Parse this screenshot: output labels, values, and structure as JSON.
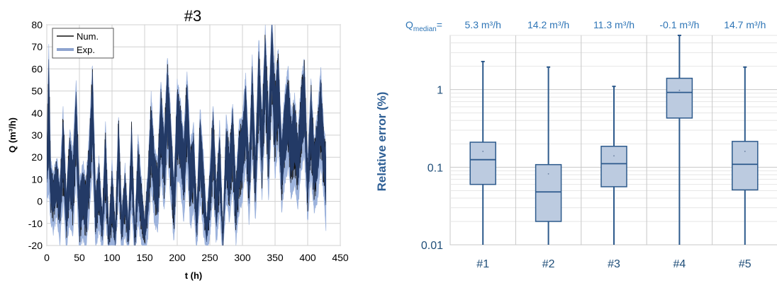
{
  "colors": {
    "num": "#111111",
    "exp_fill": "#9db3dc",
    "exp_core": "#233a66",
    "box_fill": "#bccbe0",
    "box_stroke": "#2d5a8c",
    "text_blue": "#2e75b6",
    "grid": "#d0d0d0"
  },
  "chart_data": [
    {
      "type": "line",
      "title": "#3",
      "xlabel": "t (h)",
      "ylabel": "Q  (m³/h)",
      "xlim": [
        0,
        450
      ],
      "ylim": [
        -20,
        80
      ],
      "xticks": [
        "0",
        "50",
        "100",
        "150",
        "200",
        "250",
        "300",
        "350",
        "400",
        "450"
      ],
      "yticks": [
        "-20",
        "-10",
        "0",
        "10",
        "20",
        "30",
        "40",
        "50",
        "60",
        "70",
        "80"
      ],
      "grid": true,
      "legend_position": "top-left",
      "series": [
        {
          "name": "Num.",
          "x": [
            0,
            3,
            6,
            10,
            15,
            20,
            25,
            30,
            35,
            40,
            45,
            50,
            55,
            60,
            65,
            70,
            75,
            80,
            85,
            90,
            95,
            100,
            105,
            110,
            115,
            120,
            125,
            130,
            135,
            140,
            145,
            150,
            155,
            160,
            165,
            170,
            175,
            180,
            185,
            190,
            195,
            200,
            205,
            210,
            215,
            220,
            225,
            230,
            235,
            240,
            245,
            250,
            255,
            260,
            265,
            270,
            275,
            280,
            285,
            290,
            295,
            300,
            305,
            310,
            315,
            320,
            325,
            330,
            335,
            340,
            345,
            350,
            355,
            360,
            365,
            370,
            375,
            380,
            385,
            390,
            395,
            400,
            405,
            410,
            415,
            420,
            425,
            428
          ],
          "y": [
            22,
            70,
            18,
            12,
            20,
            9,
            42,
            5,
            32,
            22,
            55,
            8,
            18,
            10,
            30,
            62,
            5,
            20,
            -5,
            35,
            -12,
            18,
            -10,
            40,
            -5,
            16,
            -8,
            38,
            -12,
            30,
            10,
            -8,
            15,
            48,
            25,
            18,
            55,
            32,
            65,
            40,
            10,
            55,
            45,
            30,
            60,
            25,
            35,
            -2,
            42,
            22,
            -8,
            15,
            45,
            8,
            35,
            -12,
            38,
            25,
            45,
            10,
            36,
            38,
            58,
            20,
            65,
            22,
            75,
            40,
            80,
            42,
            85,
            55,
            70,
            30,
            50,
            60,
            40,
            48,
            30,
            55,
            65,
            18,
            55,
            28,
            40,
            60,
            32,
            25
          ],
          "y_min": [
            5,
            8,
            -5,
            -10,
            -3,
            -15,
            5,
            -18,
            -5,
            -12,
            15,
            -20,
            -12,
            -18,
            -3,
            20,
            -18,
            -8,
            -20,
            -2,
            -22,
            -15,
            -22,
            5,
            -20,
            -10,
            -22,
            0,
            -22,
            -5,
            -15,
            -20,
            -12,
            10,
            -5,
            -10,
            15,
            0,
            25,
            5,
            -15,
            15,
            10,
            -5,
            20,
            -8,
            0,
            -18,
            5,
            -10,
            -20,
            -12,
            8,
            -15,
            0,
            -22,
            5,
            -5,
            10,
            -15,
            0,
            5,
            20,
            -5,
            25,
            -5,
            35,
            5,
            40,
            5,
            45,
            15,
            30,
            0,
            12,
            20,
            5,
            12,
            2,
            18,
            25,
            -5,
            15,
            0,
            5,
            20,
            5,
            -8
          ]
        },
        {
          "name": "Exp.",
          "note": "Exp. band plotted as envelope of the measured flow (lighter blue)"
        }
      ]
    },
    {
      "type": "box",
      "ylabel": "Relative error (%)",
      "yscale": "log",
      "ylim": [
        0.01,
        5
      ],
      "yticks": [
        "0.01",
        "0.1",
        "1"
      ],
      "categories": [
        "#1",
        "#2",
        "#3",
        "#4",
        "#5"
      ],
      "top_label_prefix": "Q",
      "top_label_sub": "median",
      "top_label_suffix": "=",
      "q_median": [
        "5.3 m³/h",
        "14.2 m³/h",
        "11.3 m³/h",
        "-0.1 m³/h",
        "14.7 m³/h"
      ],
      "boxes": [
        {
          "min": 0.01,
          "q1": 0.06,
          "median": 0.125,
          "q3": 0.21,
          "max": 2.3,
          "mean": 0.16
        },
        {
          "min": 0.01,
          "q1": 0.02,
          "median": 0.048,
          "q3": 0.108,
          "max": 1.95,
          "mean": 0.082
        },
        {
          "min": 0.01,
          "q1": 0.056,
          "median": 0.111,
          "q3": 0.186,
          "max": 1.1,
          "mean": 0.14
        },
        {
          "min": 0.01,
          "q1": 0.43,
          "median": 0.92,
          "q3": 1.4,
          "max": 5.0,
          "mean": 0.98
        },
        {
          "min": 0.01,
          "q1": 0.051,
          "median": 0.109,
          "q3": 0.215,
          "max": 1.95,
          "mean": 0.16
        }
      ]
    }
  ]
}
